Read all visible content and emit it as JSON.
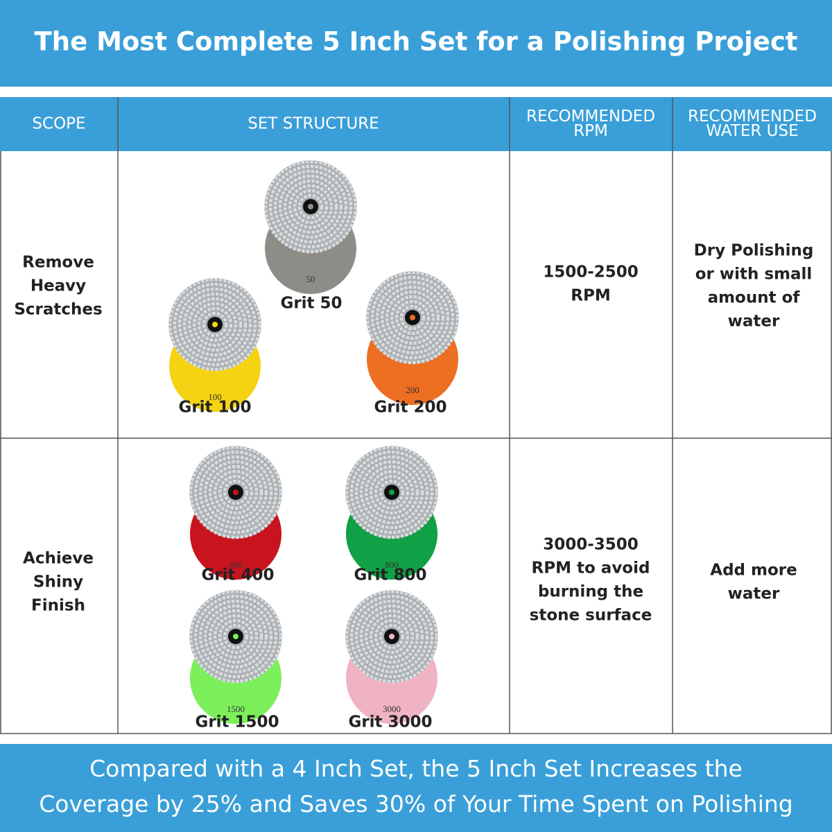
{
  "header": {
    "title": "The Most Complete 5 Inch Set for a Polishing Project"
  },
  "table": {
    "columns": [
      [
        "SCOPE"
      ],
      [
        "SET STRUCTURE"
      ],
      [
        "RECOMMENDED",
        "RPM"
      ],
      [
        "RECOMMENDED",
        "WATER USE"
      ]
    ],
    "rows": [
      {
        "scope": [
          "Remove",
          "Heavy",
          "Scratches"
        ],
        "pads": [
          {
            "label": "Grit 50",
            "mark": "50",
            "color": "#8e8c86"
          },
          {
            "label": "Grit 100",
            "mark": "100",
            "color": "#f5d312"
          },
          {
            "label": "Grit 200",
            "mark": "200",
            "color": "#ec6f22"
          }
        ],
        "rpm": [
          "1500-2500",
          "RPM"
        ],
        "water": [
          "Dry Polishing",
          "or with small",
          "amount of",
          "water"
        ]
      },
      {
        "scope": [
          "Achieve",
          "Shiny",
          "Finish"
        ],
        "pads": [
          {
            "label": "Grit 400",
            "mark": "400",
            "color": "#c8141f"
          },
          {
            "label": "Grit 800",
            "mark": "800",
            "color": "#10a045"
          },
          {
            "label": "Grit 1500",
            "mark": "1500",
            "color": "#7bf05a"
          },
          {
            "label": "Grit 3000",
            "mark": "3000",
            "color": "#f0b3c4"
          }
        ],
        "rpm": [
          "3000-3500",
          "RPM to avoid",
          "burning the",
          "stone surface"
        ],
        "water": [
          "Add more",
          "water"
        ]
      }
    ]
  },
  "footer": {
    "lines": [
      "Compared with a 4 Inch Set, the 5 Inch Set Increases the",
      "Coverage by 25% and Saves 30% of Your Time Spent on Polishing"
    ]
  }
}
